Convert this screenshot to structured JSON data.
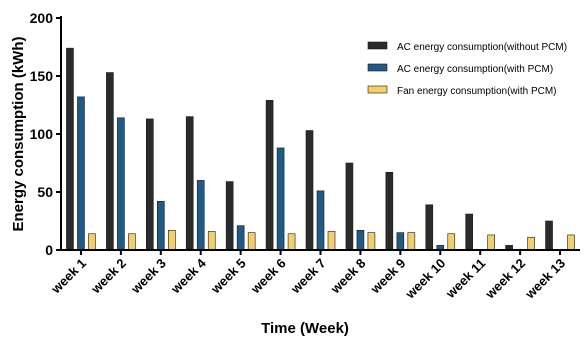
{
  "chart_data": {
    "type": "bar",
    "xlabel": "Time (Week)",
    "ylabel": "Energy consumption (kWh)",
    "ylim": [
      0,
      200
    ],
    "yticks": [
      0,
      50,
      100,
      150,
      200
    ],
    "grid": false,
    "legend_position": "top-right",
    "categories": [
      "week 1",
      "week 2",
      "week 3",
      "week 4",
      "week 5",
      "week 6",
      "week 7",
      "week 8",
      "week 9",
      "week 10",
      "week 11",
      "week 12",
      "week 13"
    ],
    "series": [
      {
        "name": "AC energy consumption(without PCM)",
        "color": "#2b2b2b",
        "values": [
          174,
          153,
          113,
          115,
          59,
          129,
          103,
          75,
          67,
          39,
          31,
          4,
          25
        ]
      },
      {
        "name": "AC energy consumption(with PCM)",
        "color": "#1f5b86",
        "values": [
          132,
          114,
          42,
          60,
          21,
          88,
          51,
          17,
          15,
          4,
          0,
          0,
          0
        ]
      },
      {
        "name": "Fan energy consumption(with PCM)",
        "color": "#f2cf6a",
        "values": [
          14,
          14,
          17,
          16,
          15,
          14,
          16,
          15,
          15,
          14,
          13,
          11,
          13
        ]
      }
    ]
  }
}
